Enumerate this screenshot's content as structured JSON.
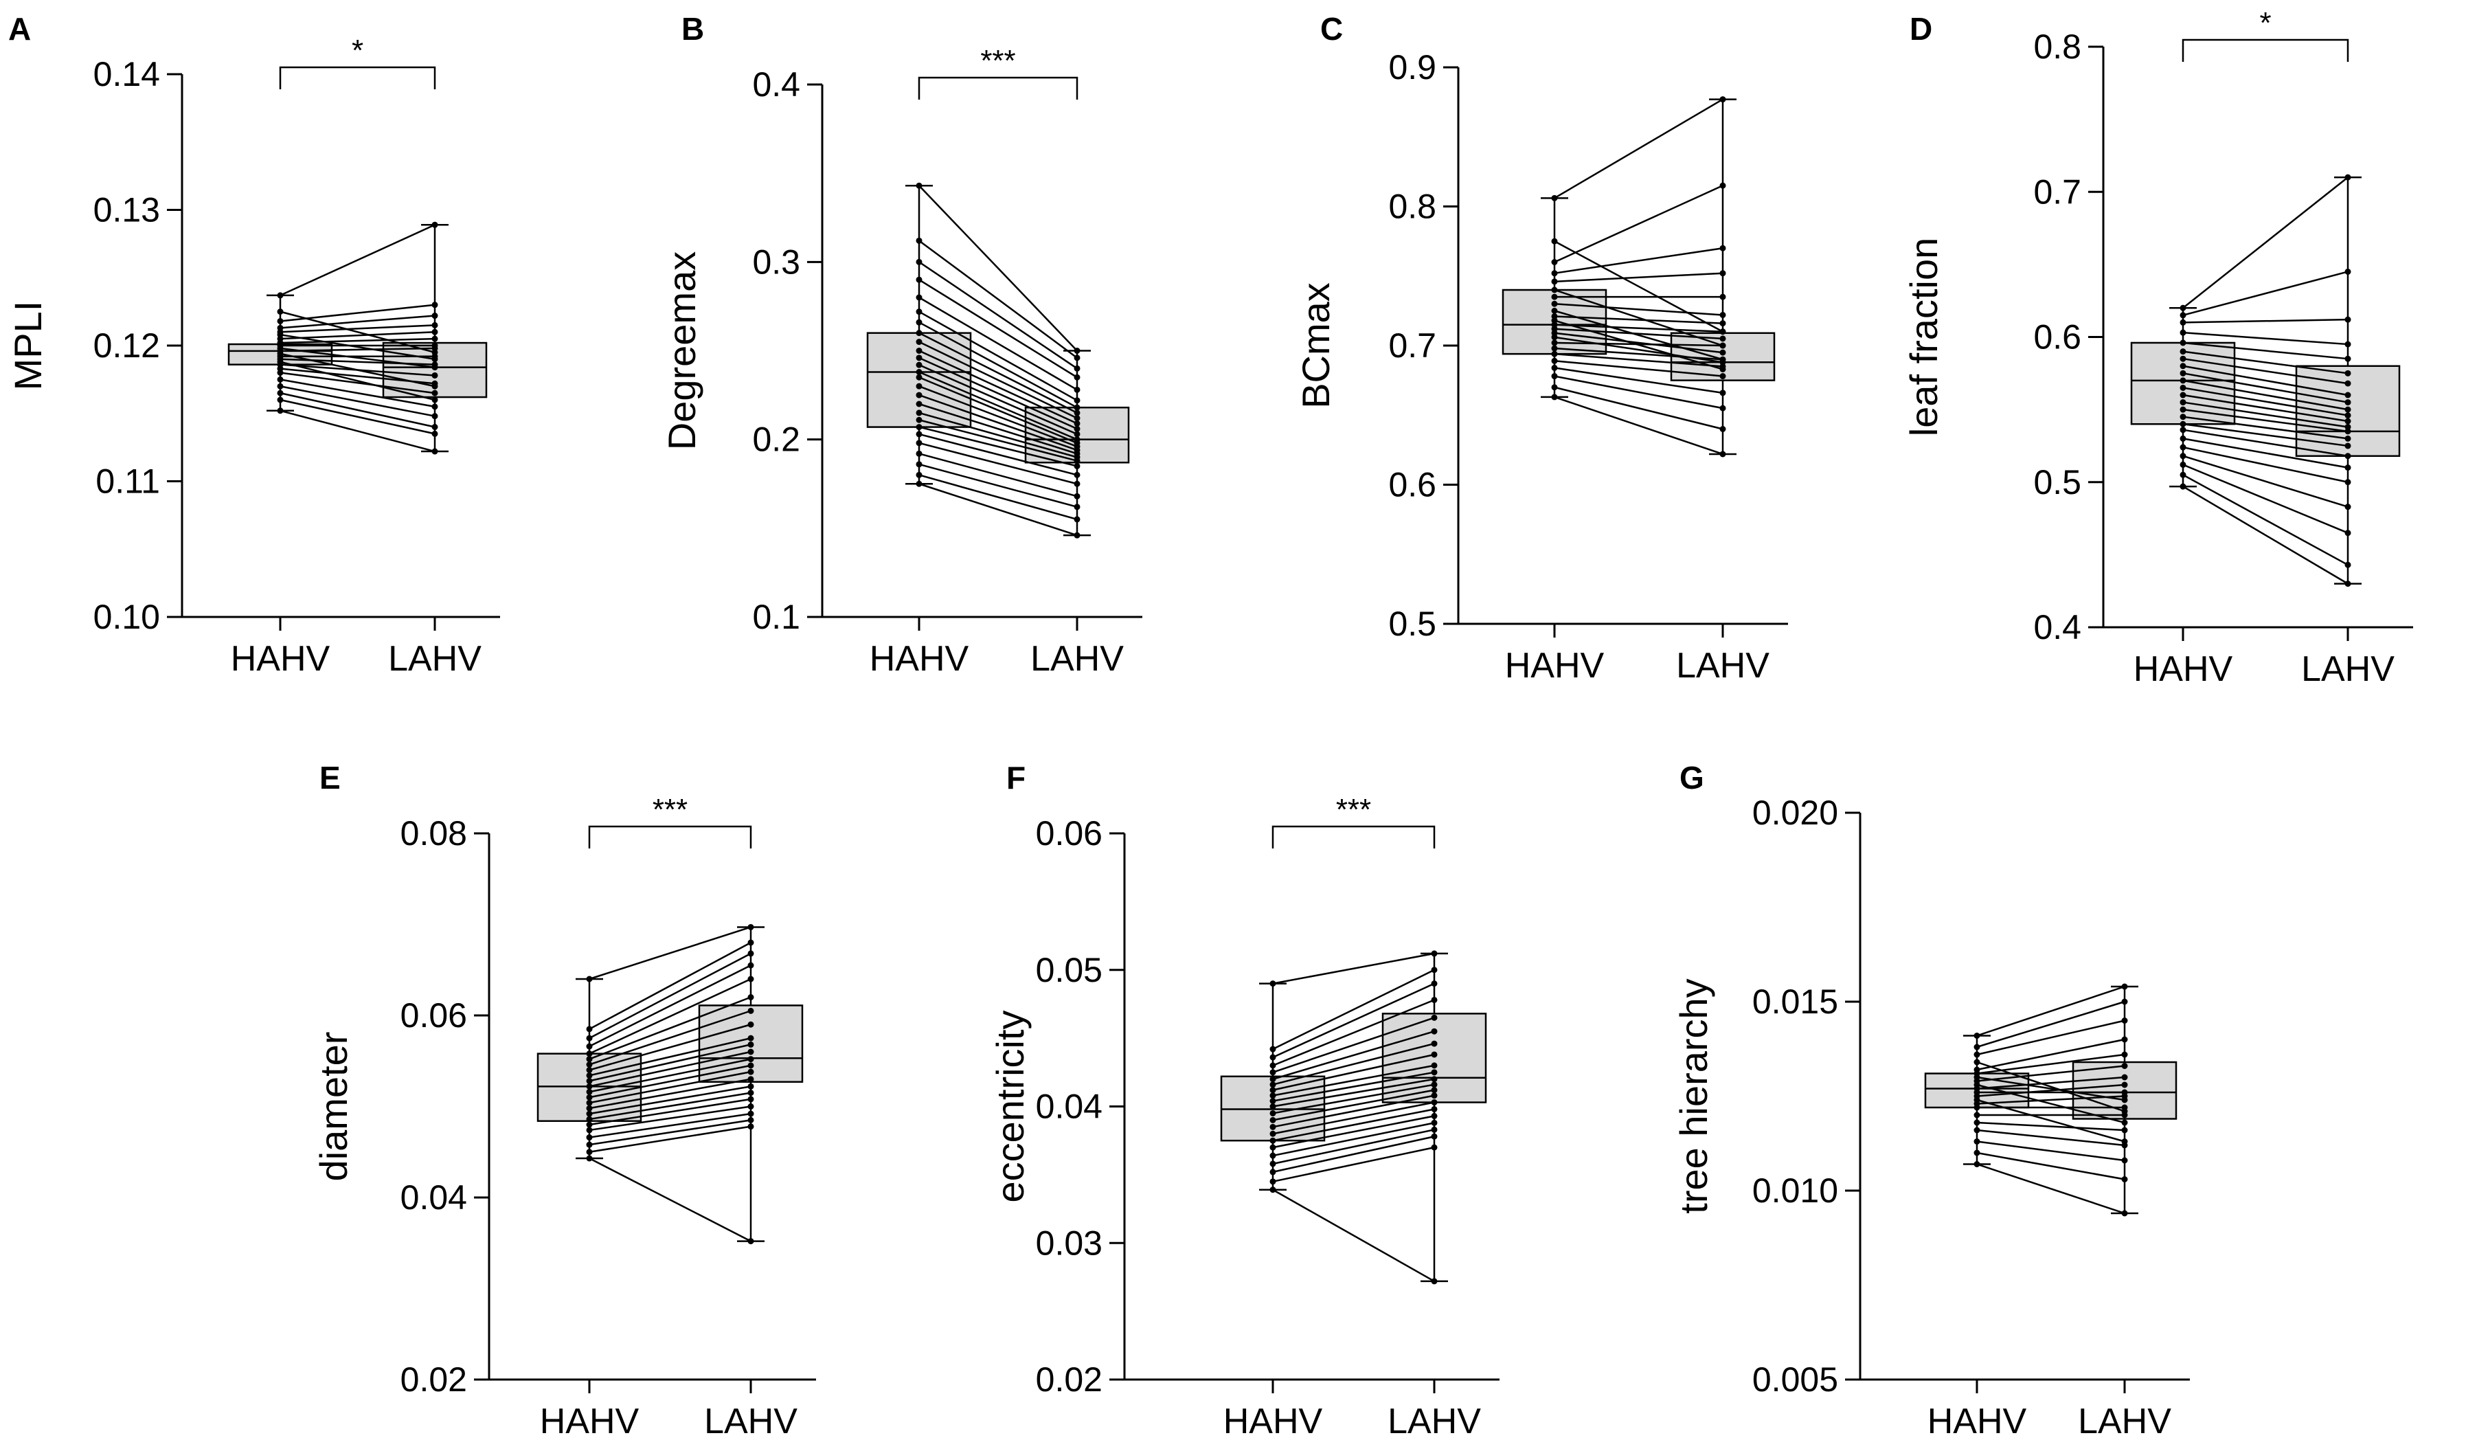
{
  "figure": {
    "background": "#ffffff",
    "box_fill": "#d9d9d9",
    "line_color": "#000000"
  },
  "chart_data": [
    {
      "panel": "A",
      "type": "box",
      "ylabel": "MPLI",
      "categories": [
        "HAHV",
        "LAHV"
      ],
      "ylim": [
        0.1,
        0.14
      ],
      "ticks": [
        0.1,
        0.11,
        0.12,
        0.13,
        0.14
      ],
      "tick_labels": [
        "0.10",
        "0.11",
        "0.12",
        "0.13",
        "0.14"
      ],
      "boxes": [
        {
          "min": 0.1152,
          "q1": 0.1186,
          "median": 0.1196,
          "q3": 0.1201,
          "max": 0.1237
        },
        {
          "min": 0.1122,
          "q1": 0.1162,
          "median": 0.1184,
          "q3": 0.1202,
          "max": 0.1289
        }
      ],
      "pairs": [
        [
          0.1152,
          0.1122
        ],
        [
          0.116,
          0.1135
        ],
        [
          0.1165,
          0.114
        ],
        [
          0.117,
          0.1148
        ],
        [
          0.1175,
          0.1155
        ],
        [
          0.118,
          0.1165
        ],
        [
          0.1183,
          0.1172
        ],
        [
          0.1186,
          0.1178
        ],
        [
          0.1188,
          0.116
        ],
        [
          0.119,
          0.1186
        ],
        [
          0.1192,
          0.1192
        ],
        [
          0.1194,
          0.117
        ],
        [
          0.1196,
          0.1198
        ],
        [
          0.1198,
          0.1184
        ],
        [
          0.12,
          0.12
        ],
        [
          0.1202,
          0.1205
        ],
        [
          0.1205,
          0.121
        ],
        [
          0.1208,
          0.119
        ],
        [
          0.121,
          0.1215
        ],
        [
          0.1213,
          0.1222
        ],
        [
          0.1218,
          0.123
        ],
        [
          0.1225,
          0.1195
        ],
        [
          0.1237,
          0.1289
        ]
      ],
      "significance": "*"
    },
    {
      "panel": "B",
      "type": "box",
      "ylabel": "Degreemax",
      "categories": [
        "HAHV",
        "LAHV"
      ],
      "ylim": [
        0.1,
        0.4
      ],
      "ticks": [
        0.1,
        0.2,
        0.3,
        0.4
      ],
      "tick_labels": [
        "0.1",
        "0.2",
        "0.3",
        "0.4"
      ],
      "boxes": [
        {
          "min": 0.175,
          "q1": 0.207,
          "median": 0.238,
          "q3": 0.26,
          "max": 0.343
        },
        {
          "min": 0.146,
          "q1": 0.187,
          "median": 0.2,
          "q3": 0.218,
          "max": 0.25
        }
      ],
      "pairs": [
        [
          0.175,
          0.146
        ],
        [
          0.18,
          0.155
        ],
        [
          0.186,
          0.162
        ],
        [
          0.192,
          0.168
        ],
        [
          0.198,
          0.175
        ],
        [
          0.203,
          0.18
        ],
        [
          0.207,
          0.185
        ],
        [
          0.211,
          0.188
        ],
        [
          0.215,
          0.19
        ],
        [
          0.22,
          0.192
        ],
        [
          0.225,
          0.194
        ],
        [
          0.23,
          0.196
        ],
        [
          0.235,
          0.198
        ],
        [
          0.238,
          0.2
        ],
        [
          0.242,
          0.203
        ],
        [
          0.246,
          0.206
        ],
        [
          0.25,
          0.209
        ],
        [
          0.255,
          0.212
        ],
        [
          0.26,
          0.215
        ],
        [
          0.266,
          0.218
        ],
        [
          0.272,
          0.222
        ],
        [
          0.28,
          0.228
        ],
        [
          0.29,
          0.235
        ],
        [
          0.3,
          0.24
        ],
        [
          0.312,
          0.246
        ],
        [
          0.343,
          0.25
        ]
      ],
      "significance": "***"
    },
    {
      "panel": "C",
      "type": "box",
      "ylabel": "BCmax",
      "categories": [
        "HAHV",
        "LAHV"
      ],
      "ylim": [
        0.5,
        0.9
      ],
      "ticks": [
        0.5,
        0.6,
        0.7,
        0.8,
        0.9
      ],
      "tick_labels": [
        "0.5",
        "0.6",
        "0.7",
        "0.8",
        "0.9"
      ],
      "boxes": [
        {
          "min": 0.663,
          "q1": 0.694,
          "median": 0.715,
          "q3": 0.74,
          "max": 0.806
        },
        {
          "min": 0.622,
          "q1": 0.675,
          "median": 0.688,
          "q3": 0.709,
          "max": 0.877
        }
      ],
      "pairs": [
        [
          0.663,
          0.622
        ],
        [
          0.67,
          0.64
        ],
        [
          0.678,
          0.655
        ],
        [
          0.684,
          0.666
        ],
        [
          0.689,
          0.678
        ],
        [
          0.694,
          0.685
        ],
        [
          0.698,
          0.69
        ],
        [
          0.702,
          0.7
        ],
        [
          0.706,
          0.688
        ],
        [
          0.709,
          0.695
        ],
        [
          0.712,
          0.705
        ],
        [
          0.715,
          0.71
        ],
        [
          0.718,
          0.683
        ],
        [
          0.721,
          0.716
        ],
        [
          0.725,
          0.69
        ],
        [
          0.73,
          0.722
        ],
        [
          0.735,
          0.735
        ],
        [
          0.74,
          0.7
        ],
        [
          0.746,
          0.752
        ],
        [
          0.752,
          0.77
        ],
        [
          0.76,
          0.815
        ],
        [
          0.775,
          0.71
        ],
        [
          0.806,
          0.877
        ]
      ],
      "significance": ""
    },
    {
      "panel": "D",
      "type": "box",
      "ylabel": "leaf fraction",
      "categories": [
        "HAHV",
        "LAHV"
      ],
      "ylim": [
        0.4,
        0.8
      ],
      "ticks": [
        0.4,
        0.5,
        0.6,
        0.7,
        0.8
      ],
      "tick_labels": [
        "0.4",
        "0.5",
        "0.6",
        "0.7",
        "0.8"
      ],
      "boxes": [
        {
          "min": 0.497,
          "q1": 0.54,
          "median": 0.57,
          "q3": 0.596,
          "max": 0.62
        },
        {
          "min": 0.43,
          "q1": 0.518,
          "median": 0.535,
          "q3": 0.58,
          "max": 0.71
        }
      ],
      "pairs": [
        [
          0.497,
          0.43
        ],
        [
          0.505,
          0.443
        ],
        [
          0.512,
          0.465
        ],
        [
          0.518,
          0.483
        ],
        [
          0.524,
          0.5
        ],
        [
          0.53,
          0.51
        ],
        [
          0.536,
          0.518
        ],
        [
          0.54,
          0.525
        ],
        [
          0.545,
          0.53
        ],
        [
          0.55,
          0.535
        ],
        [
          0.555,
          0.538
        ],
        [
          0.56,
          0.542
        ],
        [
          0.565,
          0.546
        ],
        [
          0.57,
          0.55
        ],
        [
          0.575,
          0.555
        ],
        [
          0.58,
          0.56
        ],
        [
          0.585,
          0.568
        ],
        [
          0.59,
          0.575
        ],
        [
          0.596,
          0.585
        ],
        [
          0.603,
          0.595
        ],
        [
          0.61,
          0.612
        ],
        [
          0.615,
          0.645
        ],
        [
          0.62,
          0.71
        ]
      ],
      "significance": "*"
    },
    {
      "panel": "E",
      "type": "box",
      "ylabel": "diameter",
      "categories": [
        "HAHV",
        "LAHV"
      ],
      "ylim": [
        0.02,
        0.08
      ],
      "ticks": [
        0.02,
        0.04,
        0.06,
        0.08
      ],
      "tick_labels": [
        "0.02",
        "0.04",
        "0.06",
        "0.08"
      ],
      "boxes": [
        {
          "min": 0.0443,
          "q1": 0.0484,
          "median": 0.0522,
          "q3": 0.0558,
          "max": 0.064
        },
        {
          "min": 0.0352,
          "q1": 0.0527,
          "median": 0.0553,
          "q3": 0.0611,
          "max": 0.0697
        }
      ],
      "pairs": [
        [
          0.0443,
          0.0352
        ],
        [
          0.045,
          0.0478
        ],
        [
          0.0458,
          0.0485
        ],
        [
          0.0466,
          0.0492
        ],
        [
          0.0474,
          0.05
        ],
        [
          0.048,
          0.0508
        ],
        [
          0.0486,
          0.0515
        ],
        [
          0.0492,
          0.0522
        ],
        [
          0.0498,
          0.053
        ],
        [
          0.0504,
          0.0538
        ],
        [
          0.051,
          0.0545
        ],
        [
          0.0516,
          0.0552
        ],
        [
          0.0522,
          0.056
        ],
        [
          0.0528,
          0.0568
        ],
        [
          0.0534,
          0.0575
        ],
        [
          0.054,
          0.059
        ],
        [
          0.0546,
          0.0605
        ],
        [
          0.0552,
          0.062
        ],
        [
          0.0558,
          0.064
        ],
        [
          0.0566,
          0.0655
        ],
        [
          0.0575,
          0.0668
        ],
        [
          0.0585,
          0.068
        ],
        [
          0.064,
          0.0697
        ]
      ],
      "significance": "***"
    },
    {
      "panel": "F",
      "type": "box",
      "ylabel": "eccentricity",
      "categories": [
        "HAHV",
        "LAHV"
      ],
      "ylim": [
        0.02,
        0.06
      ],
      "ticks": [
        0.02,
        0.03,
        0.04,
        0.05,
        0.06
      ],
      "tick_labels": [
        "0.02",
        "0.03",
        "0.04",
        "0.05",
        "0.06"
      ],
      "boxes": [
        {
          "min": 0.0339,
          "q1": 0.0375,
          "median": 0.0398,
          "q3": 0.0422,
          "max": 0.049
        },
        {
          "min": 0.0272,
          "q1": 0.0403,
          "median": 0.0421,
          "q3": 0.0468,
          "max": 0.0512
        }
      ],
      "pairs": [
        [
          0.0339,
          0.0272
        ],
        [
          0.0345,
          0.037
        ],
        [
          0.0352,
          0.0378
        ],
        [
          0.0358,
          0.0383
        ],
        [
          0.0364,
          0.0388
        ],
        [
          0.037,
          0.0393
        ],
        [
          0.0375,
          0.0398
        ],
        [
          0.038,
          0.0403
        ],
        [
          0.0385,
          0.0408
        ],
        [
          0.039,
          0.0412
        ],
        [
          0.0395,
          0.0416
        ],
        [
          0.04,
          0.042
        ],
        [
          0.0404,
          0.0425
        ],
        [
          0.0408,
          0.043
        ],
        [
          0.0412,
          0.0438
        ],
        [
          0.0416,
          0.0446
        ],
        [
          0.042,
          0.0455
        ],
        [
          0.0425,
          0.0465
        ],
        [
          0.043,
          0.0478
        ],
        [
          0.0436,
          0.049
        ],
        [
          0.0442,
          0.05
        ],
        [
          0.049,
          0.0512
        ]
      ],
      "significance": "***"
    },
    {
      "panel": "G",
      "type": "box",
      "ylabel": "tree hierarchy",
      "categories": [
        "HAHV",
        "LAHV"
      ],
      "ylim": [
        0.005,
        0.02
      ],
      "ticks": [
        0.005,
        0.01,
        0.015,
        0.02
      ],
      "tick_labels": [
        "0.005",
        "0.010",
        "0.015",
        "0.020"
      ],
      "boxes": [
        {
          "min": 0.0107,
          "q1": 0.0122,
          "median": 0.0127,
          "q3": 0.0131,
          "max": 0.0141
        },
        {
          "min": 0.0094,
          "q1": 0.0119,
          "median": 0.0126,
          "q3": 0.0134,
          "max": 0.0154
        }
      ],
      "pairs": [
        [
          0.0107,
          0.0094
        ],
        [
          0.011,
          0.0103
        ],
        [
          0.0113,
          0.0108
        ],
        [
          0.0116,
          0.0112
        ],
        [
          0.0118,
          0.0116
        ],
        [
          0.012,
          0.012
        ],
        [
          0.0122,
          0.0122
        ],
        [
          0.0123,
          0.0125
        ],
        [
          0.0124,
          0.0113
        ],
        [
          0.0125,
          0.0128
        ],
        [
          0.0126,
          0.0126
        ],
        [
          0.0127,
          0.013
        ],
        [
          0.0128,
          0.0118
        ],
        [
          0.0129,
          0.0133
        ],
        [
          0.013,
          0.0124
        ],
        [
          0.0131,
          0.0136
        ],
        [
          0.0132,
          0.014
        ],
        [
          0.0134,
          0.0121
        ],
        [
          0.0136,
          0.0145
        ],
        [
          0.0138,
          0.015
        ],
        [
          0.0141,
          0.0154
        ]
      ],
      "significance": ""
    }
  ]
}
